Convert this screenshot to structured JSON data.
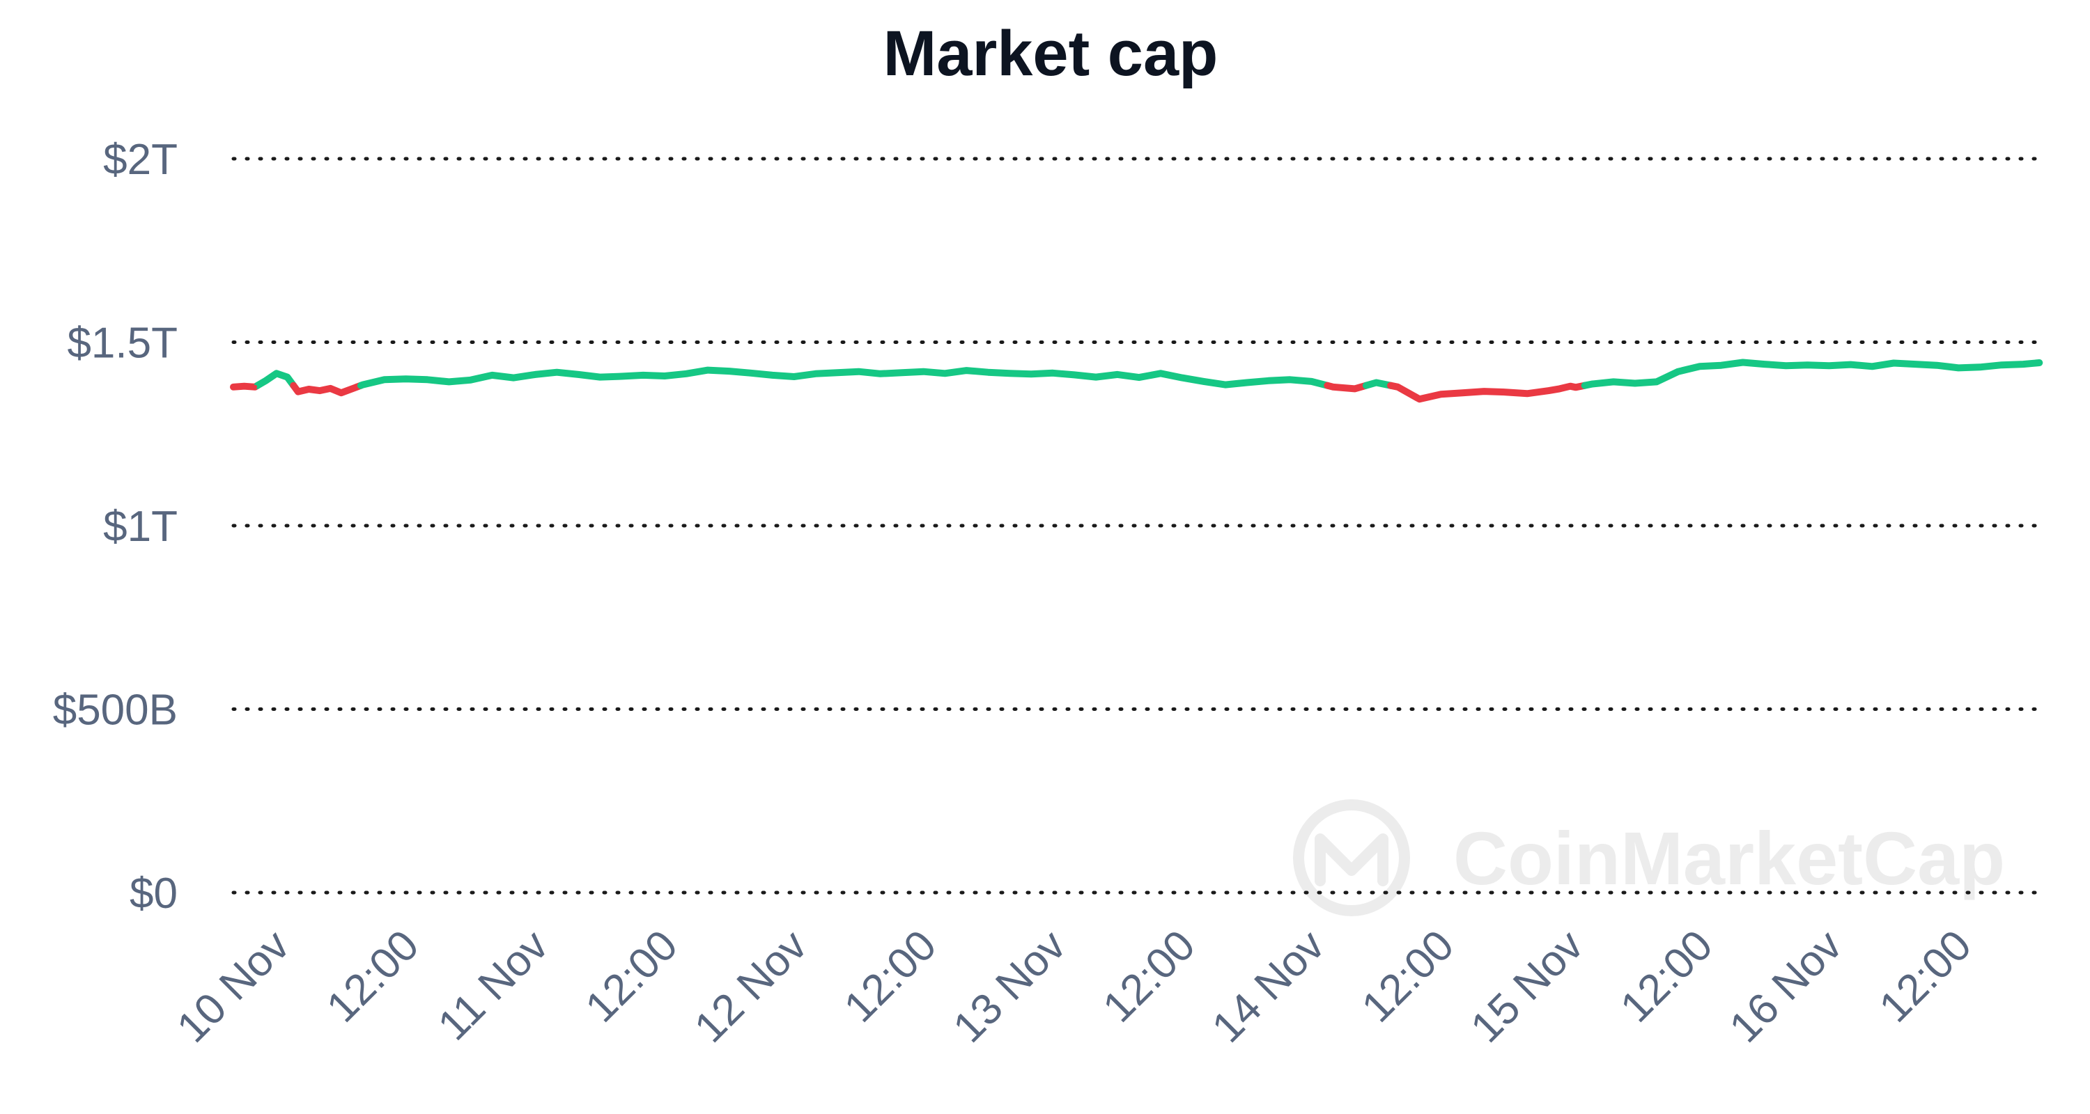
{
  "chart_data": {
    "type": "line",
    "title": "Market cap",
    "xlabel": "",
    "ylabel": "",
    "y_unit": "USD",
    "ylim": [
      0,
      2000000000000
    ],
    "y_ticks": [
      {
        "value": 0,
        "label": "$0"
      },
      {
        "value": 500000000000,
        "label": "$500B"
      },
      {
        "value": 1000000000000,
        "label": "$1T"
      },
      {
        "value": 1500000000000,
        "label": "$1.5T"
      },
      {
        "value": 2000000000000,
        "label": "$2T"
      }
    ],
    "xlim": [
      "2020-11-09T20:00",
      "2020-11-16T20:00"
    ],
    "x_ticks": [
      {
        "value": "2020-11-10T00:00",
        "label": "10 Nov"
      },
      {
        "value": "2020-11-10T12:00",
        "label": "12:00"
      },
      {
        "value": "2020-11-11T00:00",
        "label": "11 Nov"
      },
      {
        "value": "2020-11-11T12:00",
        "label": "12:00"
      },
      {
        "value": "2020-11-12T00:00",
        "label": "12 Nov"
      },
      {
        "value": "2020-11-12T12:00",
        "label": "12:00"
      },
      {
        "value": "2020-11-13T00:00",
        "label": "13 Nov"
      },
      {
        "value": "2020-11-13T12:00",
        "label": "12:00"
      },
      {
        "value": "2020-11-14T00:00",
        "label": "14 Nov"
      },
      {
        "value": "2020-11-14T12:00",
        "label": "12:00"
      },
      {
        "value": "2020-11-15T00:00",
        "label": "15 Nov"
      },
      {
        "value": "2020-11-15T12:00",
        "label": "12:00"
      },
      {
        "value": "2020-11-16T00:00",
        "label": "16 Nov"
      },
      {
        "value": "2020-11-16T12:00",
        "label": "12:00"
      }
    ],
    "grid": "horizontal-dotted",
    "baseline_value": 1382000000000,
    "colors": {
      "above": "#16c784",
      "below": "#ea3943",
      "grid": "#1a1a1a",
      "ticks": "#58667e",
      "title": "#0d1421"
    },
    "series": [
      {
        "x": [
          "2020-11-09T20:00",
          "2020-11-09T21:00",
          "2020-11-09T22:00",
          "2020-11-09T23:00",
          "2020-11-10T00:00",
          "2020-11-10T01:00",
          "2020-11-10T02:00",
          "2020-11-10T03:00",
          "2020-11-10T04:00",
          "2020-11-10T05:00",
          "2020-11-10T06:00",
          "2020-11-10T08:00",
          "2020-11-10T10:00",
          "2020-11-10T12:00",
          "2020-11-10T14:00",
          "2020-11-10T16:00",
          "2020-11-10T18:00",
          "2020-11-10T20:00",
          "2020-11-10T22:00",
          "2020-11-11T00:00",
          "2020-11-11T02:00",
          "2020-11-11T04:00",
          "2020-11-11T06:00",
          "2020-11-11T08:00",
          "2020-11-11T10:00",
          "2020-11-11T12:00",
          "2020-11-11T14:00",
          "2020-11-11T16:00",
          "2020-11-11T18:00",
          "2020-11-11T20:00",
          "2020-11-11T22:00",
          "2020-11-12T00:00",
          "2020-11-12T02:00",
          "2020-11-12T04:00",
          "2020-11-12T06:00",
          "2020-11-12T08:00",
          "2020-11-12T10:00",
          "2020-11-12T12:00",
          "2020-11-12T14:00",
          "2020-11-12T16:00",
          "2020-11-12T18:00",
          "2020-11-12T20:00",
          "2020-11-12T22:00",
          "2020-11-13T00:00",
          "2020-11-13T02:00",
          "2020-11-13T04:00",
          "2020-11-13T06:00",
          "2020-11-13T08:00",
          "2020-11-13T10:00",
          "2020-11-13T12:00",
          "2020-11-13T14:00",
          "2020-11-13T16:00",
          "2020-11-13T18:00",
          "2020-11-13T20:00",
          "2020-11-13T22:00",
          "2020-11-14T00:00",
          "2020-11-14T02:00",
          "2020-11-14T04:00",
          "2020-11-14T06:00",
          "2020-11-14T08:00",
          "2020-11-14T10:00",
          "2020-11-14T12:00",
          "2020-11-14T14:00",
          "2020-11-14T16:00",
          "2020-11-14T18:00",
          "2020-11-14T20:00",
          "2020-11-14T22:00",
          "2020-11-14T23:00",
          "2020-11-15T00:00",
          "2020-11-15T00:30",
          "2020-11-15T02:00",
          "2020-11-15T04:00",
          "2020-11-15T06:00",
          "2020-11-15T08:00",
          "2020-11-15T10:00",
          "2020-11-15T12:00",
          "2020-11-15T14:00",
          "2020-11-15T16:00",
          "2020-11-15T18:00",
          "2020-11-15T20:00",
          "2020-11-15T22:00",
          "2020-11-16T00:00",
          "2020-11-16T02:00",
          "2020-11-16T04:00",
          "2020-11-16T06:00",
          "2020-11-16T08:00",
          "2020-11-16T10:00",
          "2020-11-16T12:00",
          "2020-11-16T14:00",
          "2020-11-16T16:00",
          "2020-11-16T18:00",
          "2020-11-16T19:30"
        ],
        "y": [
          1378000000000,
          1380000000000,
          1378000000000,
          1395000000000,
          1415000000000,
          1405000000000,
          1365000000000,
          1372000000000,
          1368000000000,
          1374000000000,
          1362000000000,
          1384000000000,
          1398000000000,
          1400000000000,
          1398000000000,
          1392000000000,
          1397000000000,
          1410000000000,
          1403000000000,
          1412000000000,
          1418000000000,
          1412000000000,
          1405000000000,
          1407000000000,
          1410000000000,
          1408000000000,
          1414000000000,
          1424000000000,
          1421000000000,
          1416000000000,
          1410000000000,
          1406000000000,
          1414000000000,
          1417000000000,
          1420000000000,
          1414000000000,
          1417000000000,
          1420000000000,
          1415000000000,
          1423000000000,
          1418000000000,
          1415000000000,
          1413000000000,
          1416000000000,
          1411000000000,
          1405000000000,
          1412000000000,
          1404000000000,
          1415000000000,
          1403000000000,
          1393000000000,
          1384000000000,
          1390000000000,
          1395000000000,
          1398000000000,
          1393000000000,
          1378000000000,
          1373000000000,
          1390000000000,
          1378000000000,
          1345000000000,
          1358000000000,
          1362000000000,
          1366000000000,
          1364000000000,
          1360000000000,
          1368000000000,
          1373000000000,
          1380000000000,
          1377000000000,
          1386000000000,
          1392000000000,
          1388000000000,
          1392000000000,
          1420000000000,
          1434000000000,
          1437000000000,
          1445000000000,
          1440000000000,
          1436000000000,
          1438000000000,
          1436000000000,
          1439000000000,
          1434000000000,
          1443000000000,
          1440000000000,
          1437000000000,
          1430000000000,
          1432000000000,
          1438000000000,
          1440000000000,
          1444000000000
        ]
      }
    ]
  },
  "watermark": {
    "text": "CoinMarketCap",
    "icon": "coinmarketcap-logo-icon"
  }
}
